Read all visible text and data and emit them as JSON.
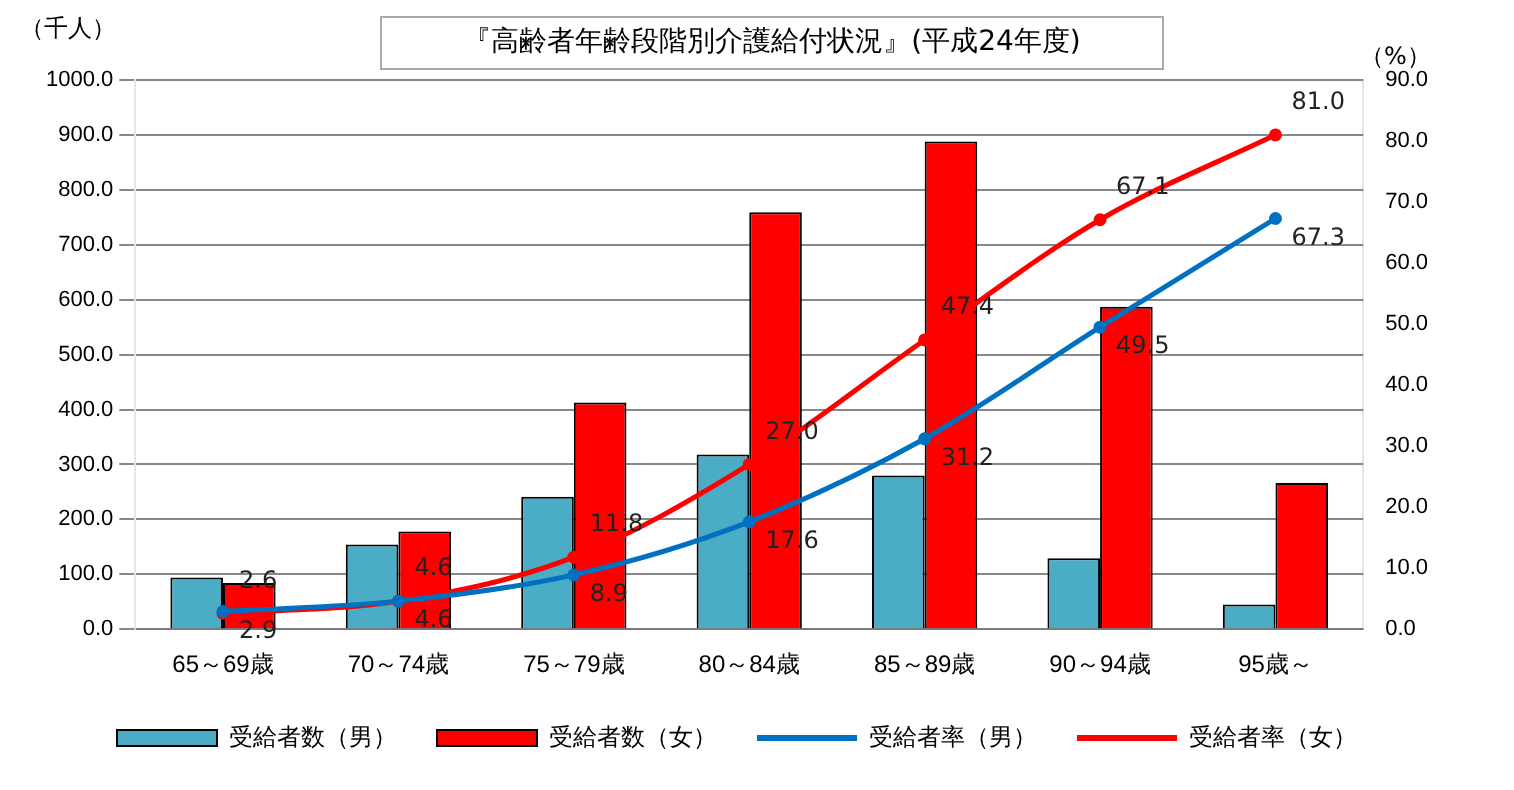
{
  "chart_data": {
    "type": "bar",
    "title": "『高齢者年齢段階別介護給付状況』(平成24年度)",
    "ylabel": "（千人）",
    "y2label": "（%）",
    "categories": [
      "65～69歳",
      "70～74歳",
      "75～79歳",
      "80～84歳",
      "85～89歳",
      "90～94歳",
      "95歳～"
    ],
    "series": [
      {
        "name": "受給者数（男）",
        "color": "#4bacc6",
        "values": [
          94,
          154,
          241,
          318,
          280,
          129,
          45
        ]
      },
      {
        "name": "受給者数（女）",
        "color": "#ff0000",
        "values": [
          84,
          178,
          413,
          759,
          888,
          587,
          266
        ]
      },
      {
        "name": "受給者率（男）",
        "type": "line",
        "axis": "y2",
        "color": "#0070c0",
        "values": [
          2.9,
          4.6,
          8.9,
          17.6,
          31.2,
          49.5,
          67.3
        ],
        "value_labels": [
          "2.9",
          "4.6",
          "8.9",
          "17.6",
          "31.2",
          "49.5",
          "67.3"
        ]
      },
      {
        "name": "受給者率（女）",
        "type": "line",
        "axis": "y2",
        "color": "#ff0000",
        "values": [
          2.6,
          4.6,
          11.8,
          27.0,
          47.4,
          67.1,
          81.0
        ],
        "value_labels": [
          "2.6",
          "4.6",
          "11.8",
          "27.0",
          "47.4",
          "67.1",
          "81.0"
        ]
      }
    ],
    "ylim": [
      0,
      1000
    ],
    "yticks": [
      {
        "value": 0,
        "label": "0.0"
      },
      {
        "value": 100,
        "label": "100.0"
      },
      {
        "value": 200,
        "label": "200.0"
      },
      {
        "value": 300,
        "label": "300.0"
      },
      {
        "value": 400,
        "label": "400.0"
      },
      {
        "value": 500,
        "label": "500.0"
      },
      {
        "value": 600,
        "label": "600.0"
      },
      {
        "value": 700,
        "label": "700.0"
      },
      {
        "value": 800,
        "label": "800.0"
      },
      {
        "value": 900,
        "label": "900.0"
      },
      {
        "value": 1000,
        "label": "1000.0"
      }
    ],
    "y2lim": [
      0,
      90
    ],
    "y2ticks": [
      {
        "value": 0,
        "label": "0.0"
      },
      {
        "value": 10,
        "label": "10.0"
      },
      {
        "value": 20,
        "label": "20.0"
      },
      {
        "value": 30,
        "label": "30.0"
      },
      {
        "value": 40,
        "label": "40.0"
      },
      {
        "value": 50,
        "label": "50.0"
      },
      {
        "value": 60,
        "label": "60.0"
      },
      {
        "value": 70,
        "label": "70.0"
      },
      {
        "value": 80,
        "label": "80.0"
      },
      {
        "value": 90,
        "label": "90.0"
      }
    ],
    "grid": "y",
    "legend": "bottom",
    "marker": "circle",
    "line_style": "solid"
  }
}
